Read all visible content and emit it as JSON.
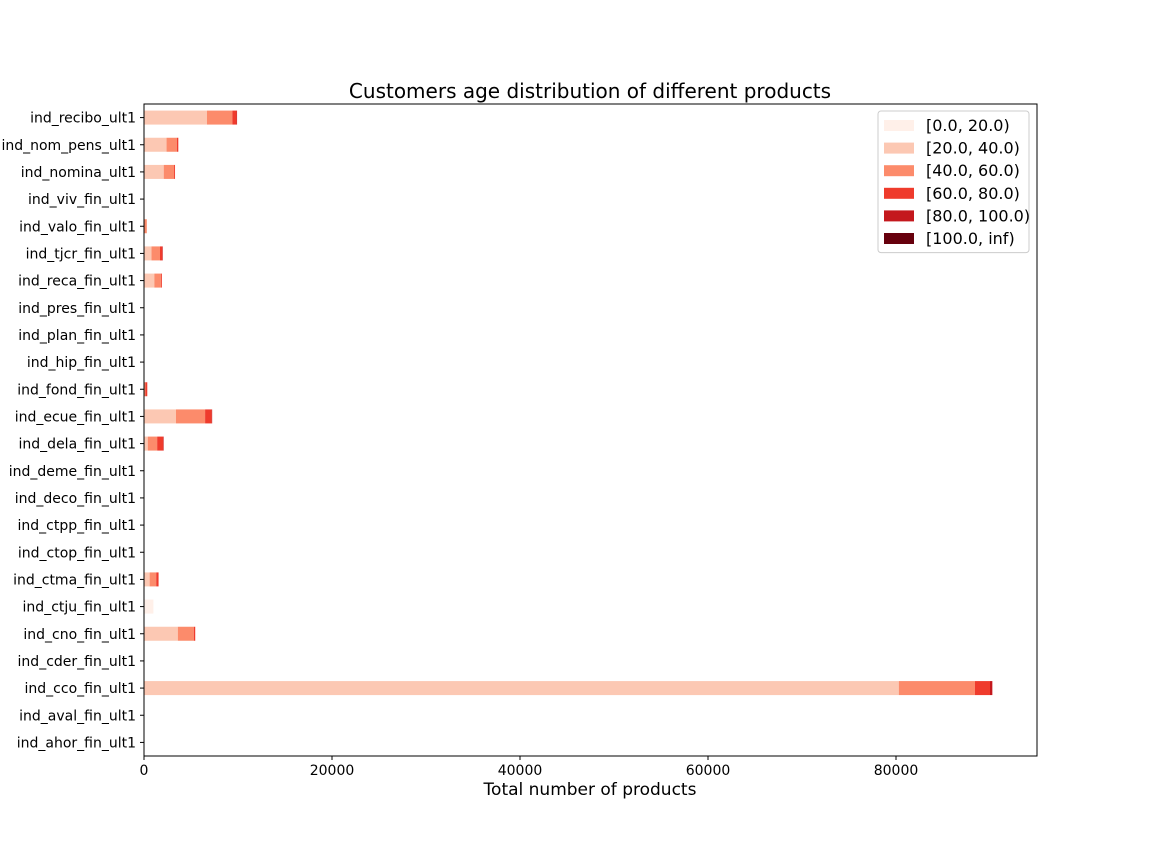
{
  "chart_data": {
    "type": "bar",
    "orientation": "horizontal",
    "stacked": true,
    "title": "Customers age distribution of different products",
    "xlabel": "Total number of products",
    "ylabel": "",
    "xlim": [
      0,
      95000
    ],
    "xticks": [
      0,
      20000,
      40000,
      60000,
      80000
    ],
    "grid": false,
    "legend_position": "top-right",
    "categories": [
      "ind_ahor_fin_ult1",
      "ind_aval_fin_ult1",
      "ind_cco_fin_ult1",
      "ind_cder_fin_ult1",
      "ind_cno_fin_ult1",
      "ind_ctju_fin_ult1",
      "ind_ctma_fin_ult1",
      "ind_ctop_fin_ult1",
      "ind_ctpp_fin_ult1",
      "ind_deco_fin_ult1",
      "ind_deme_fin_ult1",
      "ind_dela_fin_ult1",
      "ind_ecue_fin_ult1",
      "ind_fond_fin_ult1",
      "ind_hip_fin_ult1",
      "ind_plan_fin_ult1",
      "ind_pres_fin_ult1",
      "ind_reca_fin_ult1",
      "ind_tjcr_fin_ult1",
      "ind_valo_fin_ult1",
      "ind_viv_fin_ult1",
      "ind_nomina_ult1",
      "ind_nom_pens_ult1",
      "ind_recibo_ult1"
    ],
    "series": [
      {
        "name": "[0.0, 20.0)",
        "color": "#fff0e9",
        "values": [
          0,
          0,
          0,
          0,
          0,
          1000,
          0,
          0,
          0,
          0,
          0,
          0,
          0,
          0,
          0,
          0,
          0,
          0,
          0,
          0,
          0,
          0,
          0,
          0
        ]
      },
      {
        "name": "[20.0, 40.0)",
        "color": "#fcc8b3",
        "values": [
          0,
          0,
          80300,
          0,
          3600,
          0,
          600,
          0,
          0,
          0,
          0,
          400,
          3400,
          0,
          0,
          0,
          0,
          1100,
          800,
          0,
          0,
          2100,
          2400,
          6700
        ]
      },
      {
        "name": "[40.0, 60.0)",
        "color": "#fc8b6b",
        "values": [
          0,
          0,
          8100,
          0,
          1700,
          0,
          700,
          0,
          0,
          0,
          0,
          1000,
          3100,
          150,
          0,
          0,
          0,
          700,
          900,
          300,
          0,
          1100,
          1100,
          2700
        ]
      },
      {
        "name": "[60.0, 80.0)",
        "color": "#ef3b2c",
        "values": [
          0,
          0,
          1600,
          0,
          150,
          0,
          250,
          0,
          0,
          0,
          0,
          650,
          700,
          200,
          0,
          0,
          0,
          100,
          250,
          0,
          0,
          100,
          150,
          450
        ]
      },
      {
        "name": "[80.0, 100.0)",
        "color": "#c4181d",
        "values": [
          0,
          0,
          250,
          0,
          0,
          0,
          0,
          0,
          0,
          0,
          0,
          50,
          50,
          0,
          0,
          0,
          0,
          0,
          50,
          0,
          0,
          0,
          0,
          50
        ]
      },
      {
        "name": "[100.0, inf)",
        "color": "#67000d",
        "values": [
          0,
          0,
          0,
          0,
          0,
          0,
          0,
          0,
          0,
          0,
          0,
          0,
          0,
          0,
          0,
          0,
          0,
          0,
          0,
          0,
          0,
          0,
          0,
          0
        ]
      }
    ]
  }
}
